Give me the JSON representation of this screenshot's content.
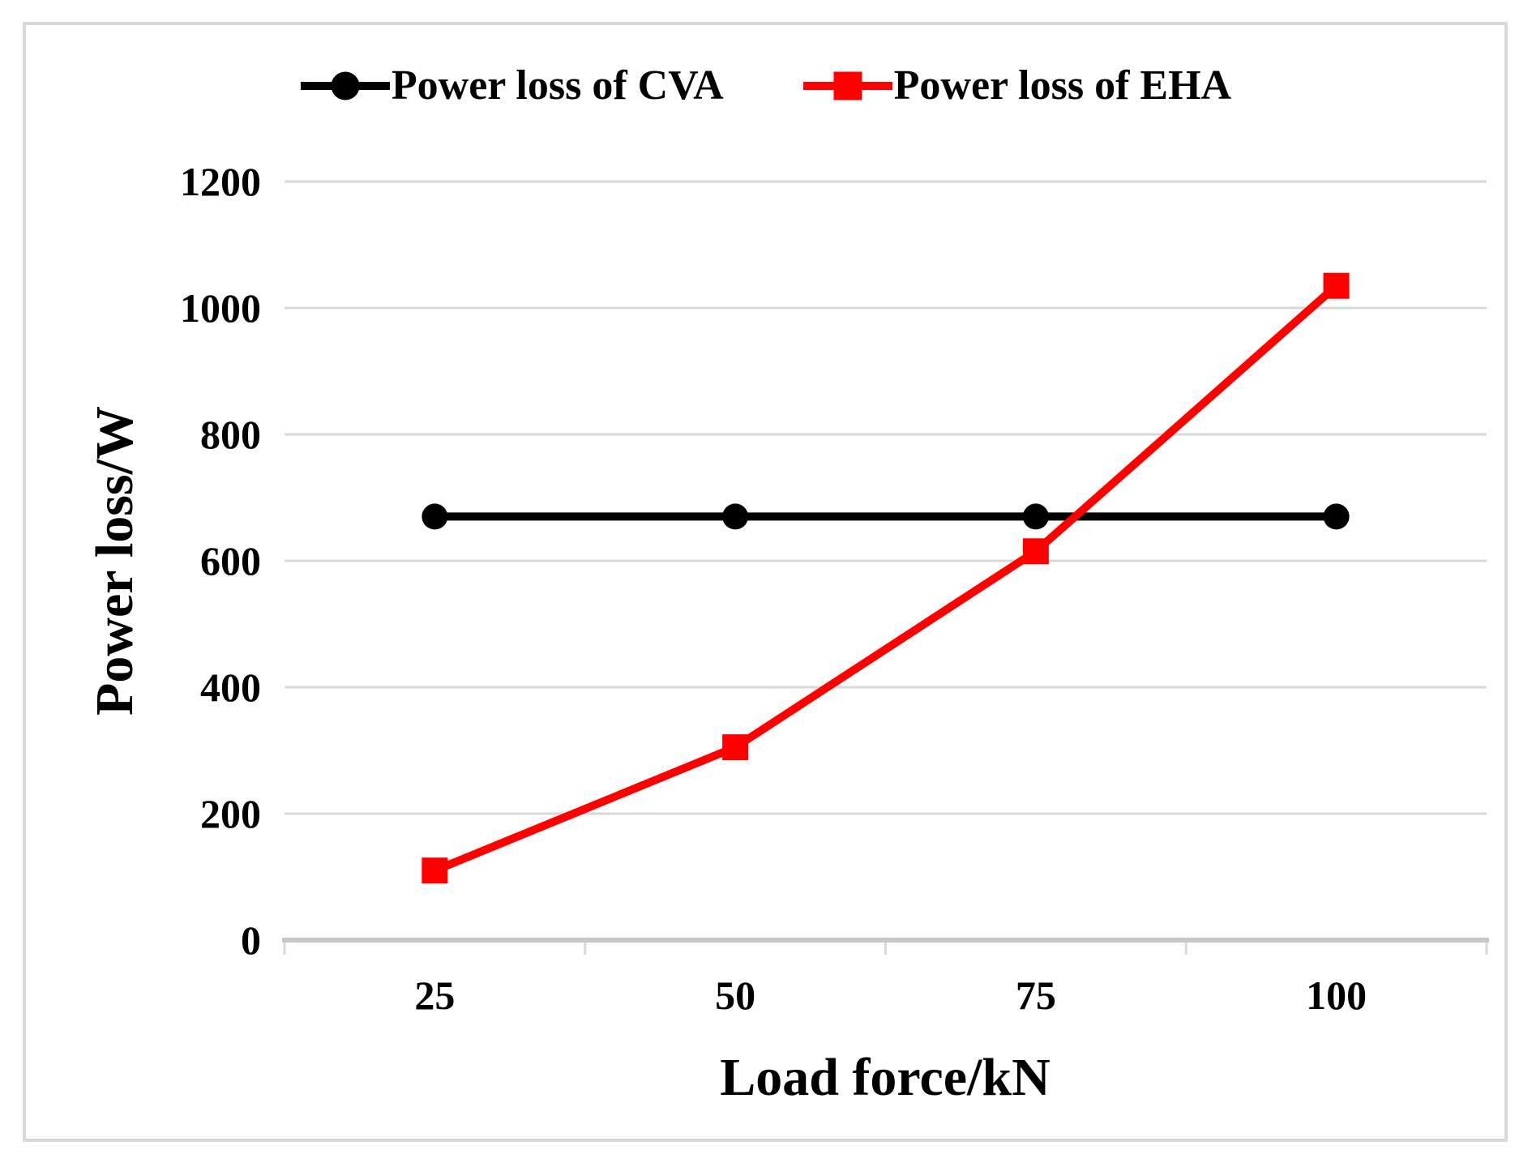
{
  "legend": {
    "items": [
      {
        "label": "Power loss of CVA",
        "color": "#000000",
        "marker": "circle"
      },
      {
        "label": "Power loss of EHA",
        "color": "#ff0000",
        "marker": "square"
      }
    ]
  },
  "axes": {
    "xlabel": "Load force/kN",
    "ylabel": "Power loss/W"
  },
  "chart_data": {
    "type": "line",
    "x": [
      25,
      50,
      75,
      100
    ],
    "xticklabels": [
      "25",
      "50",
      "75",
      "100"
    ],
    "series": [
      {
        "name": "Power loss of CVA",
        "color": "#000000",
        "marker": "circle",
        "values": [
          670,
          670,
          670,
          670
        ]
      },
      {
        "name": "Power loss of EHA",
        "color": "#ff0000",
        "marker": "square",
        "values": [
          110,
          305,
          615,
          1035
        ]
      }
    ],
    "title": "",
    "xlabel": "Load force/kN",
    "ylabel": "Power loss/W",
    "ylim": [
      0,
      1200
    ],
    "yticks": [
      0,
      200,
      400,
      600,
      800,
      1000,
      1200
    ],
    "grid": "horizontal-only",
    "legend_position": "top-center",
    "colors": {
      "gridline": "#d9d9d9",
      "axis_line": "#c8c8c8",
      "tick": "#d9d9d9",
      "frame_border": "#d9d9d9",
      "text": "#000000"
    }
  }
}
